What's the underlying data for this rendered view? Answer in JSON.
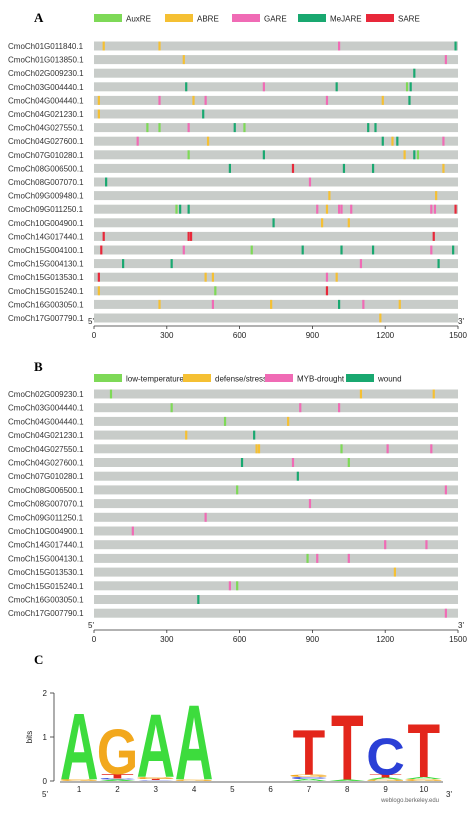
{
  "chart_data": [
    {
      "panel": "A",
      "type": "motif-map",
      "x_range": [
        0,
        1500
      ],
      "x_ticks": [
        0,
        300,
        600,
        900,
        1200,
        1500
      ],
      "x_start_label": "5'",
      "x_end_label": "3'",
      "element_types": [
        {
          "name": "AuxRE",
          "color": "#7ed957"
        },
        {
          "name": "ABRE",
          "color": "#f5c033"
        },
        {
          "name": "GARE",
          "color": "#f06bb5"
        },
        {
          "name": "MeJARE",
          "color": "#19a870"
        },
        {
          "name": "SARE",
          "color": "#e8283a"
        }
      ],
      "genes": [
        {
          "name": "CmoCh01G011840.1",
          "sites": [
            {
              "pos": 40,
              "type": 1
            },
            {
              "pos": 270,
              "type": 1
            },
            {
              "pos": 1010,
              "type": 2
            },
            {
              "pos": 1490,
              "type": 3
            }
          ]
        },
        {
          "name": "CmoCh01G013850.1",
          "sites": [
            {
              "pos": 370,
              "type": 1
            },
            {
              "pos": 1450,
              "type": 2
            }
          ]
        },
        {
          "name": "CmoCh02G009230.1",
          "sites": [
            {
              "pos": 1320,
              "type": 3
            }
          ]
        },
        {
          "name": "CmoCh03G004440.1",
          "sites": [
            {
              "pos": 380,
              "type": 3
            },
            {
              "pos": 700,
              "type": 2
            },
            {
              "pos": 1000,
              "type": 3
            },
            {
              "pos": 1290,
              "type": 0
            },
            {
              "pos": 1305,
              "type": 3
            }
          ]
        },
        {
          "name": "CmoCh04G004440.1",
          "sites": [
            {
              "pos": 20,
              "type": 1
            },
            {
              "pos": 270,
              "type": 2
            },
            {
              "pos": 410,
              "type": 1
            },
            {
              "pos": 460,
              "type": 2
            },
            {
              "pos": 960,
              "type": 2
            },
            {
              "pos": 1190,
              "type": 1
            },
            {
              "pos": 1300,
              "type": 3
            }
          ]
        },
        {
          "name": "CmoCh04G021230.1",
          "sites": [
            {
              "pos": 20,
              "type": 1
            },
            {
              "pos": 450,
              "type": 3
            }
          ]
        },
        {
          "name": "CmoCh04G027550.1",
          "sites": [
            {
              "pos": 220,
              "type": 0
            },
            {
              "pos": 270,
              "type": 0
            },
            {
              "pos": 390,
              "type": 2
            },
            {
              "pos": 580,
              "type": 3
            },
            {
              "pos": 620,
              "type": 0
            },
            {
              "pos": 1130,
              "type": 3
            },
            {
              "pos": 1160,
              "type": 3
            }
          ]
        },
        {
          "name": "CmoCh04G027600.1",
          "sites": [
            {
              "pos": 180,
              "type": 2
            },
            {
              "pos": 470,
              "type": 1
            },
            {
              "pos": 1190,
              "type": 3
            },
            {
              "pos": 1230,
              "type": 1
            },
            {
              "pos": 1250,
              "type": 3
            },
            {
              "pos": 1440,
              "type": 2
            }
          ]
        },
        {
          "name": "CmoCh07G010280.1",
          "sites": [
            {
              "pos": 390,
              "type": 0
            },
            {
              "pos": 700,
              "type": 3
            },
            {
              "pos": 1280,
              "type": 1
            },
            {
              "pos": 1320,
              "type": 3
            },
            {
              "pos": 1335,
              "type": 0
            }
          ]
        },
        {
          "name": "CmoCh08G006500.1",
          "sites": [
            {
              "pos": 560,
              "type": 3
            },
            {
              "pos": 820,
              "type": 4
            },
            {
              "pos": 1030,
              "type": 3
            },
            {
              "pos": 1150,
              "type": 3
            },
            {
              "pos": 1440,
              "type": 1
            }
          ]
        },
        {
          "name": "CmoCh08G007070.1",
          "sites": [
            {
              "pos": 50,
              "type": 3
            },
            {
              "pos": 890,
              "type": 2
            }
          ]
        },
        {
          "name": "CmoCh09G009480.1",
          "sites": [
            {
              "pos": 970,
              "type": 1
            },
            {
              "pos": 1410,
              "type": 1
            }
          ]
        },
        {
          "name": "CmoCh09G011250.1",
          "sites": [
            {
              "pos": 340,
              "type": 0
            },
            {
              "pos": 355,
              "type": 3
            },
            {
              "pos": 390,
              "type": 3
            },
            {
              "pos": 920,
              "type": 2
            },
            {
              "pos": 960,
              "type": 1
            },
            {
              "pos": 1010,
              "type": 2
            },
            {
              "pos": 1020,
              "type": 2
            },
            {
              "pos": 1060,
              "type": 2
            },
            {
              "pos": 1390,
              "type": 2
            },
            {
              "pos": 1405,
              "type": 2
            },
            {
              "pos": 1490,
              "type": 4
            }
          ]
        },
        {
          "name": "CmoCh10G004900.1",
          "sites": [
            {
              "pos": 740,
              "type": 3
            },
            {
              "pos": 940,
              "type": 1
            },
            {
              "pos": 1050,
              "type": 1
            }
          ]
        },
        {
          "name": "CmoCh14G017440.1",
          "sites": [
            {
              "pos": 40,
              "type": 4
            },
            {
              "pos": 390,
              "type": 4
            },
            {
              "pos": 400,
              "type": 4
            },
            {
              "pos": 1400,
              "type": 4
            }
          ]
        },
        {
          "name": "CmoCh15G004100.1",
          "sites": [
            {
              "pos": 30,
              "type": 4
            },
            {
              "pos": 370,
              "type": 2
            },
            {
              "pos": 650,
              "type": 0
            },
            {
              "pos": 860,
              "type": 3
            },
            {
              "pos": 1020,
              "type": 3
            },
            {
              "pos": 1150,
              "type": 3
            },
            {
              "pos": 1390,
              "type": 2
            },
            {
              "pos": 1480,
              "type": 3
            }
          ]
        },
        {
          "name": "CmoCh15G004130.1",
          "sites": [
            {
              "pos": 120,
              "type": 3
            },
            {
              "pos": 320,
              "type": 3
            },
            {
              "pos": 1100,
              "type": 2
            },
            {
              "pos": 1420,
              "type": 3
            }
          ]
        },
        {
          "name": "CmoCh15G013530.1",
          "sites": [
            {
              "pos": 20,
              "type": 4
            },
            {
              "pos": 460,
              "type": 1
            },
            {
              "pos": 490,
              "type": 1
            },
            {
              "pos": 960,
              "type": 2
            },
            {
              "pos": 1000,
              "type": 1
            }
          ]
        },
        {
          "name": "CmoCh15G015240.1",
          "sites": [
            {
              "pos": 20,
              "type": 1
            },
            {
              "pos": 500,
              "type": 0
            },
            {
              "pos": 960,
              "type": 4
            }
          ]
        },
        {
          "name": "CmoCh16G003050.1",
          "sites": [
            {
              "pos": 270,
              "type": 1
            },
            {
              "pos": 490,
              "type": 2
            },
            {
              "pos": 730,
              "type": 1
            },
            {
              "pos": 1010,
              "type": 3
            },
            {
              "pos": 1110,
              "type": 2
            },
            {
              "pos": 1260,
              "type": 1
            }
          ]
        },
        {
          "name": "CmoCh17G007790.1",
          "sites": [
            {
              "pos": 1180,
              "type": 1
            }
          ]
        }
      ]
    },
    {
      "panel": "B",
      "type": "motif-map",
      "x_range": [
        0,
        1500
      ],
      "x_ticks": [
        0,
        300,
        600,
        900,
        1200,
        1500
      ],
      "x_start_label": "5'",
      "x_end_label": "3'",
      "element_types": [
        {
          "name": "low-temperature",
          "color": "#7ed957"
        },
        {
          "name": "defense/stress",
          "color": "#f5c033"
        },
        {
          "name": "MYB-drought",
          "color": "#f06bb5"
        },
        {
          "name": "wound",
          "color": "#19a870"
        }
      ],
      "genes": [
        {
          "name": "CmoCh02G009230.1",
          "sites": [
            {
              "pos": 70,
              "type": 0
            },
            {
              "pos": 1100,
              "type": 1
            },
            {
              "pos": 1400,
              "type": 1
            }
          ]
        },
        {
          "name": "CmoCh03G004440.1",
          "sites": [
            {
              "pos": 320,
              "type": 0
            },
            {
              "pos": 850,
              "type": 2
            },
            {
              "pos": 1010,
              "type": 2
            }
          ]
        },
        {
          "name": "CmoCh04G004440.1",
          "sites": [
            {
              "pos": 540,
              "type": 0
            },
            {
              "pos": 800,
              "type": 1
            }
          ]
        },
        {
          "name": "CmoCh04G021230.1",
          "sites": [
            {
              "pos": 380,
              "type": 1
            },
            {
              "pos": 660,
              "type": 3
            }
          ]
        },
        {
          "name": "CmoCh04G027550.1",
          "sites": [
            {
              "pos": 670,
              "type": 1
            },
            {
              "pos": 680,
              "type": 1
            },
            {
              "pos": 1020,
              "type": 0
            },
            {
              "pos": 1210,
              "type": 2
            },
            {
              "pos": 1390,
              "type": 2
            }
          ]
        },
        {
          "name": "CmoCh04G027600.1",
          "sites": [
            {
              "pos": 610,
              "type": 3
            },
            {
              "pos": 820,
              "type": 2
            },
            {
              "pos": 1050,
              "type": 0
            }
          ]
        },
        {
          "name": "CmoCh07G010280.1",
          "sites": [
            {
              "pos": 840,
              "type": 3
            }
          ]
        },
        {
          "name": "CmoCh08G006500.1",
          "sites": [
            {
              "pos": 590,
              "type": 0
            },
            {
              "pos": 1450,
              "type": 2
            }
          ]
        },
        {
          "name": "CmoCh08G007070.1",
          "sites": [
            {
              "pos": 890,
              "type": 2
            }
          ]
        },
        {
          "name": "CmoCh09G011250.1",
          "sites": [
            {
              "pos": 460,
              "type": 2
            }
          ]
        },
        {
          "name": "CmoCh10G004900.1",
          "sites": [
            {
              "pos": 160,
              "type": 2
            }
          ]
        },
        {
          "name": "CmoCh14G017440.1",
          "sites": [
            {
              "pos": 1200,
              "type": 2
            },
            {
              "pos": 1370,
              "type": 2
            }
          ]
        },
        {
          "name": "CmoCh15G004130.1",
          "sites": [
            {
              "pos": 880,
              "type": 0
            },
            {
              "pos": 920,
              "type": 2
            },
            {
              "pos": 1050,
              "type": 2
            }
          ]
        },
        {
          "name": "CmoCh15G013530.1",
          "sites": [
            {
              "pos": 1240,
              "type": 1
            }
          ]
        },
        {
          "name": "CmoCh15G015240.1",
          "sites": [
            {
              "pos": 560,
              "type": 2
            },
            {
              "pos": 590,
              "type": 0
            }
          ]
        },
        {
          "name": "CmoCh16G003050.1",
          "sites": [
            {
              "pos": 430,
              "type": 3
            }
          ]
        },
        {
          "name": "CmoCh17G007790.1",
          "sites": [
            {
              "pos": 1450,
              "type": 2
            }
          ]
        }
      ]
    },
    {
      "panel": "C",
      "type": "sequence-logo",
      "ylabel": "bits",
      "ylim": [
        0,
        2
      ],
      "y_ticks": [
        0,
        1,
        2
      ],
      "x_start_label": "5'",
      "x_end_label": "3'",
      "footer": "weblogo.berkeley.edu",
      "base_colors": {
        "A": "#3ddc3d",
        "C": "#2a3fd6",
        "G": "#f2a81d",
        "T": "#e3261b"
      },
      "positions": [
        {
          "index": "1",
          "stack": [
            {
              "base": "G",
              "bits": 0.04
            },
            {
              "base": "A",
              "bits": 1.55
            }
          ]
        },
        {
          "index": "2",
          "stack": [
            {
              "base": "A",
              "bits": 0.03
            },
            {
              "base": "C",
              "bits": 0.03
            },
            {
              "base": "T",
              "bits": 0.1
            },
            {
              "base": "G",
              "bits": 1.05
            }
          ]
        },
        {
          "index": "3",
          "stack": [
            {
              "base": "C",
              "bits": 0.02
            },
            {
              "base": "T",
              "bits": 0.03
            },
            {
              "base": "G",
              "bits": 0.04
            },
            {
              "base": "A",
              "bits": 1.48
            }
          ]
        },
        {
          "index": "4",
          "stack": [
            {
              "base": "G",
              "bits": 0.03
            },
            {
              "base": "A",
              "bits": 1.75
            }
          ]
        },
        {
          "index": "5",
          "stack": []
        },
        {
          "index": "6",
          "stack": []
        },
        {
          "index": "7",
          "stack": [
            {
              "base": "A",
              "bits": 0.04
            },
            {
              "base": "C",
              "bits": 0.05
            },
            {
              "base": "G",
              "bits": 0.06
            },
            {
              "base": "T",
              "bits": 1.05
            }
          ]
        },
        {
          "index": "8",
          "stack": [
            {
              "base": "A",
              "bits": 0.03
            },
            {
              "base": "T",
              "bits": 1.52
            }
          ]
        },
        {
          "index": "9",
          "stack": [
            {
              "base": "G",
              "bits": 0.03
            },
            {
              "base": "A",
              "bits": 0.05
            },
            {
              "base": "T",
              "bits": 0.07
            },
            {
              "base": "C",
              "bits": 0.85
            }
          ]
        },
        {
          "index": "10",
          "stack": [
            {
              "base": "G",
              "bits": 0.04
            },
            {
              "base": "A",
              "bits": 0.05
            },
            {
              "base": "T",
              "bits": 1.25
            }
          ]
        }
      ]
    }
  ]
}
